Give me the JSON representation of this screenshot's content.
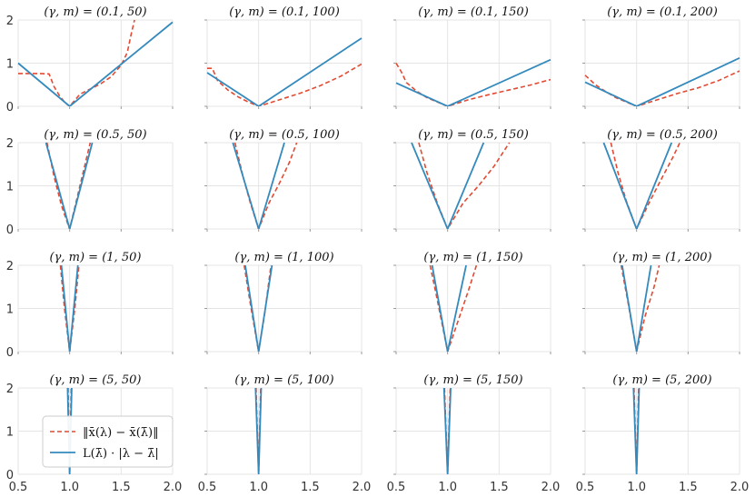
{
  "figure": {
    "x_ticks": [
      "0.5",
      "1.0",
      "1.5",
      "2.0"
    ],
    "y_ticks": [
      "0",
      "1",
      "2"
    ],
    "colors": {
      "actual": "#e24a33",
      "bound": "#348abd",
      "grid": "#e5e5e5"
    }
  },
  "legend": {
    "actual_label": "‖x̄(λ) − x̄(λ̄)‖",
    "bound_label": "L(λ̄) · |λ − λ̄|"
  },
  "chart_data": [
    {
      "type": "line",
      "title": "(γ, m) = (0.1, 50)",
      "xlim": [
        0.5,
        2.0
      ],
      "ylim": [
        0,
        2
      ],
      "series": [
        {
          "name": "actual",
          "style": "dashed",
          "points": [
            [
              0.5,
              0.76
            ],
            [
              0.6,
              0.76
            ],
            [
              0.7,
              0.76
            ],
            [
              0.8,
              0.75
            ],
            [
              0.85,
              0.45
            ],
            [
              0.9,
              0.25
            ],
            [
              0.95,
              0.1
            ],
            [
              1.0,
              0.0
            ],
            [
              1.1,
              0.28
            ],
            [
              1.2,
              0.4
            ],
            [
              1.3,
              0.52
            ],
            [
              1.4,
              0.68
            ],
            [
              1.5,
              0.95
            ],
            [
              1.56,
              1.25
            ],
            [
              1.6,
              1.7
            ],
            [
              1.63,
              2.0
            ]
          ]
        },
        {
          "name": "bound",
          "style": "solid",
          "points": [
            [
              0.5,
              1.0
            ],
            [
              1.0,
              0.0
            ],
            [
              2.0,
              1.95
            ]
          ]
        }
      ]
    },
    {
      "type": "line",
      "title": "(γ, m) = (0.1, 100)",
      "xlim": [
        0.5,
        2.0
      ],
      "ylim": [
        0,
        2
      ],
      "series": [
        {
          "name": "actual",
          "style": "dashed",
          "points": [
            [
              0.5,
              0.88
            ],
            [
              0.55,
              0.88
            ],
            [
              0.6,
              0.6
            ],
            [
              0.7,
              0.38
            ],
            [
              0.8,
              0.22
            ],
            [
              0.9,
              0.1
            ],
            [
              1.0,
              0.0
            ],
            [
              1.2,
              0.15
            ],
            [
              1.4,
              0.3
            ],
            [
              1.6,
              0.48
            ],
            [
              1.8,
              0.7
            ],
            [
              2.0,
              0.98
            ]
          ]
        },
        {
          "name": "bound",
          "style": "solid",
          "points": [
            [
              0.5,
              0.78
            ],
            [
              1.0,
              0.0
            ],
            [
              2.0,
              1.58
            ]
          ]
        }
      ]
    },
    {
      "type": "line",
      "title": "(γ, m) = (0.1, 150)",
      "xlim": [
        0.5,
        2.0
      ],
      "ylim": [
        0,
        2
      ],
      "series": [
        {
          "name": "actual",
          "style": "dashed",
          "points": [
            [
              0.5,
              1.0
            ],
            [
              0.55,
              0.8
            ],
            [
              0.6,
              0.55
            ],
            [
              0.7,
              0.35
            ],
            [
              0.8,
              0.2
            ],
            [
              0.9,
              0.1
            ],
            [
              1.0,
              0.0
            ],
            [
              1.2,
              0.15
            ],
            [
              1.4,
              0.27
            ],
            [
              1.6,
              0.38
            ],
            [
              1.8,
              0.49
            ],
            [
              2.0,
              0.62
            ]
          ]
        },
        {
          "name": "bound",
          "style": "solid",
          "points": [
            [
              0.5,
              0.54
            ],
            [
              1.0,
              0.0
            ],
            [
              2.0,
              1.08
            ]
          ]
        }
      ]
    },
    {
      "type": "line",
      "title": "(γ, m) = (0.1, 200)",
      "xlim": [
        0.5,
        2.0
      ],
      "ylim": [
        0,
        2
      ],
      "series": [
        {
          "name": "actual",
          "style": "dashed",
          "points": [
            [
              0.5,
              0.72
            ],
            [
              0.6,
              0.5
            ],
            [
              0.7,
              0.34
            ],
            [
              0.8,
              0.2
            ],
            [
              0.9,
              0.1
            ],
            [
              1.0,
              0.0
            ],
            [
              1.2,
              0.15
            ],
            [
              1.4,
              0.3
            ],
            [
              1.6,
              0.43
            ],
            [
              1.8,
              0.6
            ],
            [
              2.0,
              0.82
            ]
          ]
        },
        {
          "name": "bound",
          "style": "solid",
          "points": [
            [
              0.5,
              0.56
            ],
            [
              1.0,
              0.0
            ],
            [
              2.0,
              1.12
            ]
          ]
        }
      ]
    },
    {
      "type": "line",
      "title": "(γ, m) = (0.5, 50)",
      "xlim": [
        0.5,
        2.0
      ],
      "ylim": [
        0,
        2
      ],
      "series": [
        {
          "name": "actual",
          "style": "dashed",
          "points": [
            [
              0.78,
              2.0
            ],
            [
              0.85,
              1.2
            ],
            [
              0.92,
              0.55
            ],
            [
              0.97,
              0.2
            ],
            [
              1.0,
              0.0
            ],
            [
              1.05,
              0.5
            ],
            [
              1.12,
              1.2
            ],
            [
              1.2,
              2.0
            ]
          ]
        },
        {
          "name": "bound",
          "style": "solid",
          "points": [
            [
              0.77,
              2.0
            ],
            [
              1.0,
              0.0
            ],
            [
              1.22,
              2.0
            ]
          ]
        }
      ]
    },
    {
      "type": "line",
      "title": "(γ, m) = (0.5, 100)",
      "xlim": [
        0.5,
        2.0
      ],
      "ylim": [
        0,
        2
      ],
      "series": [
        {
          "name": "actual",
          "style": "dashed",
          "points": [
            [
              0.77,
              2.0
            ],
            [
              0.85,
              1.2
            ],
            [
              0.92,
              0.6
            ],
            [
              1.0,
              0.0
            ],
            [
              1.1,
              0.6
            ],
            [
              1.2,
              1.05
            ],
            [
              1.3,
              1.55
            ],
            [
              1.37,
              2.0
            ]
          ]
        },
        {
          "name": "bound",
          "style": "solid",
          "points": [
            [
              0.75,
              2.0
            ],
            [
              1.0,
              0.0
            ],
            [
              1.25,
              2.0
            ]
          ]
        }
      ]
    },
    {
      "type": "line",
      "title": "(γ, m) = (0.5, 150)",
      "xlim": [
        0.5,
        2.0
      ],
      "ylim": [
        0,
        2
      ],
      "series": [
        {
          "name": "actual",
          "style": "dashed",
          "points": [
            [
              0.72,
              2.0
            ],
            [
              0.8,
              1.3
            ],
            [
              0.9,
              0.6
            ],
            [
              1.0,
              0.0
            ],
            [
              1.15,
              0.6
            ],
            [
              1.3,
              1.0
            ],
            [
              1.45,
              1.45
            ],
            [
              1.6,
              2.0
            ]
          ]
        },
        {
          "name": "bound",
          "style": "solid",
          "points": [
            [
              0.65,
              2.0
            ],
            [
              1.0,
              0.0
            ],
            [
              1.35,
              2.0
            ]
          ]
        }
      ]
    },
    {
      "type": "line",
      "title": "(γ, m) = (0.5, 200)",
      "xlim": [
        0.5,
        2.0
      ],
      "ylim": [
        0,
        2
      ],
      "series": [
        {
          "name": "actual",
          "style": "dashed",
          "points": [
            [
              0.75,
              2.0
            ],
            [
              0.82,
              1.3
            ],
            [
              0.9,
              0.65
            ],
            [
              1.0,
              0.0
            ],
            [
              1.12,
              0.6
            ],
            [
              1.25,
              1.2
            ],
            [
              1.35,
              1.65
            ],
            [
              1.42,
              2.0
            ]
          ]
        },
        {
          "name": "bound",
          "style": "solid",
          "points": [
            [
              0.68,
              2.0
            ],
            [
              1.0,
              0.0
            ],
            [
              1.34,
              2.0
            ]
          ]
        }
      ]
    },
    {
      "type": "line",
      "title": "(γ, m) = (1, 50)",
      "xlim": [
        0.5,
        2.0
      ],
      "ylim": [
        0,
        2
      ],
      "series": [
        {
          "name": "actual",
          "style": "dashed",
          "points": [
            [
              0.91,
              2.0
            ],
            [
              0.95,
              1.0
            ],
            [
              1.0,
              0.0
            ],
            [
              1.05,
              1.0
            ],
            [
              1.09,
              2.0
            ]
          ]
        },
        {
          "name": "bound",
          "style": "solid",
          "points": [
            [
              0.92,
              2.0
            ],
            [
              1.0,
              0.0
            ],
            [
              1.08,
              2.0
            ]
          ]
        }
      ]
    },
    {
      "type": "line",
      "title": "(γ, m) = (1, 100)",
      "xlim": [
        0.5,
        2.0
      ],
      "ylim": [
        0,
        2
      ],
      "series": [
        {
          "name": "actual",
          "style": "dashed",
          "points": [
            [
              0.86,
              2.0
            ],
            [
              0.92,
              1.1
            ],
            [
              1.0,
              0.0
            ],
            [
              1.06,
              0.9
            ],
            [
              1.12,
              2.0
            ]
          ]
        },
        {
          "name": "bound",
          "style": "solid",
          "points": [
            [
              0.87,
              2.0
            ],
            [
              1.0,
              0.0
            ],
            [
              1.13,
              2.0
            ]
          ]
        }
      ]
    },
    {
      "type": "line",
      "title": "(γ, m) = (1, 150)",
      "xlim": [
        0.5,
        2.0
      ],
      "ylim": [
        0,
        2
      ],
      "series": [
        {
          "name": "actual",
          "style": "dashed",
          "points": [
            [
              0.83,
              2.0
            ],
            [
              0.9,
              1.2
            ],
            [
              1.0,
              0.0
            ],
            [
              1.1,
              0.7
            ],
            [
              1.2,
              1.4
            ],
            [
              1.28,
              2.0
            ]
          ]
        },
        {
          "name": "bound",
          "style": "solid",
          "points": [
            [
              0.85,
              2.0
            ],
            [
              1.0,
              0.0
            ],
            [
              1.18,
              2.0
            ]
          ]
        }
      ]
    },
    {
      "type": "line",
      "title": "(γ, m) = (1, 200)",
      "xlim": [
        0.5,
        2.0
      ],
      "ylim": [
        0,
        2
      ],
      "series": [
        {
          "name": "actual",
          "style": "dashed",
          "points": [
            [
              0.85,
              2.0
            ],
            [
              0.92,
              1.1
            ],
            [
              1.0,
              0.0
            ],
            [
              1.08,
              0.8
            ],
            [
              1.17,
              1.5
            ],
            [
              1.22,
              2.0
            ]
          ]
        },
        {
          "name": "bound",
          "style": "solid",
          "points": [
            [
              0.86,
              2.0
            ],
            [
              1.0,
              0.0
            ],
            [
              1.14,
              2.0
            ]
          ]
        }
      ]
    },
    {
      "type": "line",
      "title": "(γ, m) = (5, 50)",
      "xlim": [
        0.5,
        2.0
      ],
      "ylim": [
        0,
        2
      ],
      "series": [
        {
          "name": "actual",
          "style": "dashed",
          "points": [
            [
              0.985,
              2.0
            ],
            [
              1.0,
              0.0
            ],
            [
              1.015,
              2.0
            ]
          ]
        },
        {
          "name": "bound",
          "style": "solid",
          "points": [
            [
              0.98,
              2.0
            ],
            [
              1.0,
              0.0
            ],
            [
              1.02,
              2.0
            ]
          ]
        }
      ]
    },
    {
      "type": "line",
      "title": "(γ, m) = (5, 100)",
      "xlim": [
        0.5,
        2.0
      ],
      "ylim": [
        0,
        2
      ],
      "series": [
        {
          "name": "actual",
          "style": "dashed",
          "points": [
            [
              0.975,
              2.0
            ],
            [
              1.0,
              0.0
            ],
            [
              1.02,
              2.0
            ]
          ]
        },
        {
          "name": "bound",
          "style": "solid",
          "points": [
            [
              0.97,
              2.0
            ],
            [
              1.0,
              0.0
            ],
            [
              1.025,
              2.0
            ]
          ]
        }
      ]
    },
    {
      "type": "line",
      "title": "(γ, m) = (5, 150)",
      "xlim": [
        0.5,
        2.0
      ],
      "ylim": [
        0,
        2
      ],
      "series": [
        {
          "name": "actual",
          "style": "dashed",
          "points": [
            [
              0.97,
              2.0
            ],
            [
              1.0,
              0.0
            ],
            [
              1.025,
              2.0
            ]
          ]
        },
        {
          "name": "bound",
          "style": "solid",
          "points": [
            [
              0.965,
              2.0
            ],
            [
              1.0,
              0.0
            ],
            [
              1.03,
              2.0
            ]
          ]
        }
      ]
    },
    {
      "type": "line",
      "title": "(γ, m) = (5, 200)",
      "xlim": [
        0.5,
        2.0
      ],
      "ylim": [
        0,
        2
      ],
      "series": [
        {
          "name": "actual",
          "style": "dashed",
          "points": [
            [
              0.975,
              2.0
            ],
            [
              1.0,
              0.0
            ],
            [
              1.02,
              2.0
            ]
          ]
        },
        {
          "name": "bound",
          "style": "solid",
          "points": [
            [
              0.97,
              2.0
            ],
            [
              1.0,
              0.0
            ],
            [
              1.025,
              2.0
            ]
          ]
        }
      ]
    }
  ]
}
